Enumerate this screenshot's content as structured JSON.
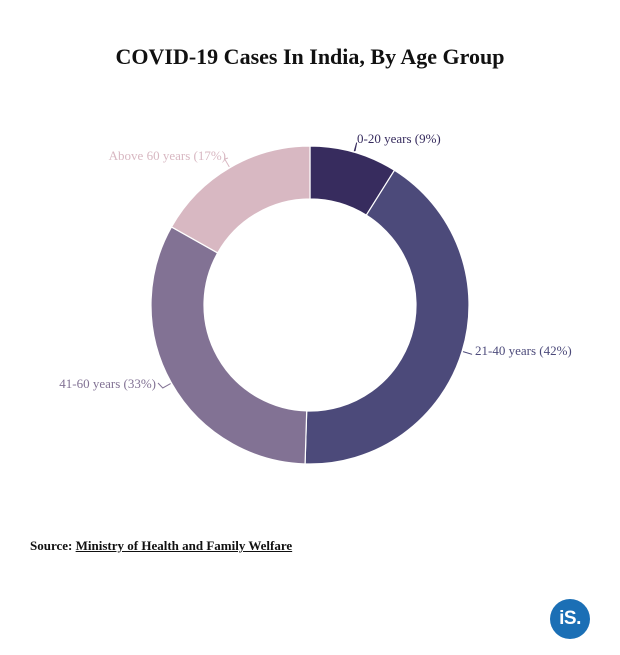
{
  "chart_data": {
    "type": "pie",
    "title": "COVID-19 Cases In India, By Age Group",
    "categories": [
      "0-20 years",
      "21-40 years",
      "41-60 years",
      "Above 60 years"
    ],
    "values": [
      9,
      42,
      33,
      17
    ],
    "labels": [
      "0-20 years (9%)",
      "21-40 years (42%)",
      "41-60 years (33%)",
      "Above 60 years (17%)"
    ],
    "colors": [
      "#372c5e",
      "#4c4a7a",
      "#827294",
      "#d8b8c2"
    ],
    "label_colors": [
      "#372c5e",
      "#4c4a7a",
      "#827294",
      "#d8b8c2"
    ],
    "donut": true,
    "legend": "none"
  },
  "source": {
    "label": "Source:",
    "link_text": "Ministry of Health and Family Welfare"
  },
  "logo": {
    "text": "iS."
  }
}
